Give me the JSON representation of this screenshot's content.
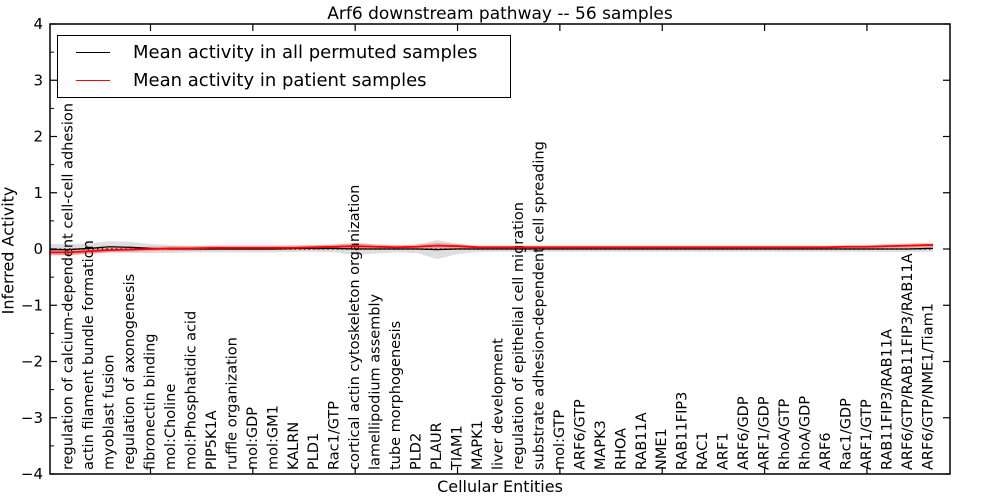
{
  "title": "Arf6 downstream pathway -- 56 samples",
  "axes": {
    "xlabel": "Cellular Entities",
    "ylabel": "Inferred Activity"
  },
  "legend": {
    "entries": [
      {
        "label": "Mean activity in all permuted samples",
        "color": "#000000"
      },
      {
        "label": "Mean activity in patient samples",
        "color": "#ff0000"
      }
    ]
  },
  "colors": {
    "axis": "#000000",
    "permuted_line": "#000000",
    "patient_line": "#ff0000",
    "permuted_band": "rgba(0,0,0,0.13)",
    "patient_band": "rgba(255,0,0,0.25)",
    "zero_line": "#000000"
  },
  "chart_data": {
    "type": "line",
    "title": "Arf6 downstream pathway -- 56 samples",
    "xlabel": "Cellular Entities",
    "ylabel": "Inferred Activity",
    "ylim": [
      -4,
      4
    ],
    "yticks": [
      -4,
      -3,
      -2,
      -1,
      0,
      1,
      2,
      3,
      4
    ],
    "grid": false,
    "legend_position": "upper left",
    "zero_line": {
      "y": 0,
      "style": "dotted",
      "color": "#000000"
    },
    "categories": [
      "regulation of calcium-dependent cell-cell adhesion",
      "actin filament bundle formation",
      "myoblast fusion",
      "regulation of axonogenesis",
      "fibronectin binding",
      "mol:Choline",
      "mol:Phosphatidic acid",
      "PIP5K1A",
      "ruffle organization",
      "mol:GDP",
      "mol:GM1",
      "KALRN",
      "PLD1",
      "Rac1/GTP",
      "cortical actin cytoskeleton organization",
      "lamellipodium assembly",
      "tube morphogenesis",
      "PLD2",
      "PLAUR",
      "TIAM1",
      "MAPK1",
      "liver development",
      "regulation of epithelial cell migration",
      "substrate adhesion-dependent cell spreading",
      "mol:GTP",
      "ARF6/GTP",
      "MAPK3",
      "RHOA",
      "RAB11A",
      "NME1",
      "RAB11FIP3",
      "RAC1",
      "ARF1",
      "ARF6/GDP",
      "ARF1/GDP",
      "RhoA/GTP",
      "RhoA/GDP",
      "ARF6",
      "Rac1/GDP",
      "ARF1/GTP",
      "RAB11FIP3/RAB11A",
      "ARF6/GTP/RAB11FIP3/RAB11A",
      "ARF6/GTP/NME1/Tiam1"
    ],
    "series": [
      {
        "name": "Mean activity in all permuted samples",
        "color": "#000000",
        "values": [
          -0.01,
          0.01,
          0.04,
          0.03,
          0.01,
          0,
          0,
          0,
          0,
          0,
          0,
          0.01,
          0.01,
          0.01,
          0,
          0,
          0,
          0,
          -0.01,
          0,
          0,
          0,
          0,
          0,
          0,
          0,
          0,
          0,
          0,
          0,
          0,
          0,
          0,
          0,
          0,
          0,
          0,
          0,
          0,
          0,
          0,
          0,
          0.01
        ],
        "band_halfwidth": [
          0.1,
          0.09,
          0.1,
          0.1,
          0.08,
          0.07,
          0.06,
          0.06,
          0.06,
          0.06,
          0.06,
          0.06,
          0.06,
          0.07,
          0.11,
          0.08,
          0.06,
          0.07,
          0.17,
          0.09,
          0.05,
          0.05,
          0.05,
          0.05,
          0.05,
          0.05,
          0.05,
          0.05,
          0.05,
          0.05,
          0.05,
          0.05,
          0.05,
          0.05,
          0.05,
          0.05,
          0.05,
          0.05,
          0.05,
          0.05,
          0.05,
          0.05,
          0.06
        ]
      },
      {
        "name": "Mean activity in patient samples",
        "color": "#ff0000",
        "values": [
          -0.06,
          -0.04,
          -0.02,
          -0.01,
          0,
          0.01,
          0.01,
          0.02,
          0.02,
          0.02,
          0.02,
          0.02,
          0.03,
          0.04,
          0.05,
          0.04,
          0.03,
          0.04,
          0.06,
          0.05,
          0.03,
          0.03,
          0.03,
          0.03,
          0.03,
          0.03,
          0.03,
          0.03,
          0.03,
          0.03,
          0.03,
          0.03,
          0.03,
          0.03,
          0.03,
          0.03,
          0.03,
          0.03,
          0.04,
          0.04,
          0.05,
          0.06,
          0.07
        ],
        "band_halfwidth": [
          0.05,
          0.05,
          0.04,
          0.04,
          0.04,
          0.04,
          0.04,
          0.04,
          0.04,
          0.04,
          0.04,
          0.04,
          0.04,
          0.04,
          0.05,
          0.04,
          0.04,
          0.04,
          0.05,
          0.04,
          0.03,
          0.03,
          0.03,
          0.03,
          0.03,
          0.03,
          0.03,
          0.03,
          0.03,
          0.03,
          0.03,
          0.03,
          0.03,
          0.03,
          0.03,
          0.03,
          0.03,
          0.03,
          0.03,
          0.03,
          0.035,
          0.04,
          0.04
        ]
      }
    ]
  }
}
